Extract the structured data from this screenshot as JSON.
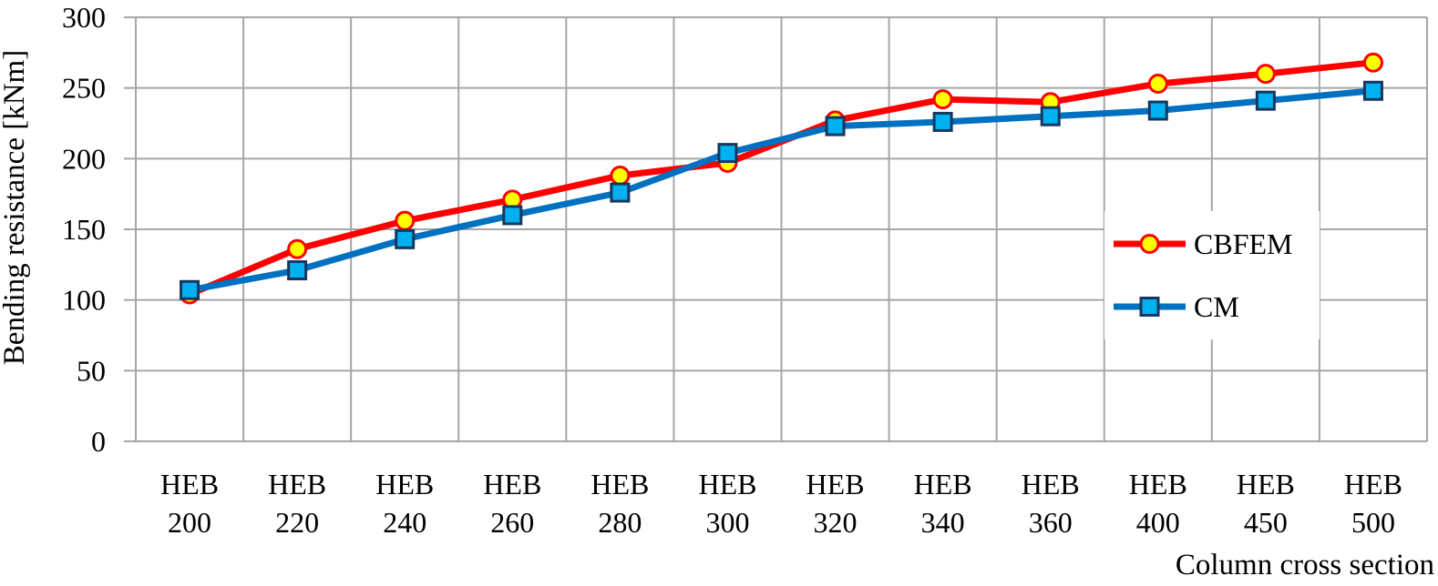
{
  "figure": {
    "background_color": "#FFFFFF",
    "gridline_color": "#A6A6A6",
    "text_color": "#000000"
  },
  "chart_data": {
    "type": "line",
    "title": "",
    "xlabel": "Column cross section",
    "ylabel": "Bending resistance [kNm]",
    "ylim": [
      0,
      300
    ],
    "ytick_step": 50,
    "ytick_labels": [
      "0",
      "50",
      "100",
      "150",
      "200",
      "250",
      "300"
    ],
    "grid": true,
    "legend_position": "middle-right",
    "categories": [
      "HEB 200",
      "HEB 220",
      "HEB 240",
      "HEB 260",
      "HEB 280",
      "HEB 300",
      "HEB 320",
      "HEB 340",
      "HEB 360",
      "HEB 400",
      "HEB 450",
      "HEB 500"
    ],
    "series": [
      {
        "name": "CBFEM",
        "values": [
          104,
          136,
          156,
          171,
          188,
          197,
          227,
          242,
          240,
          253,
          260,
          268
        ],
        "line_color": "#FF0000",
        "marker": "circle",
        "marker_fill": "#FFFF00",
        "marker_stroke": "#FF0000"
      },
      {
        "name": "CM",
        "values": [
          107,
          121,
          143,
          160,
          176,
          204,
          223,
          226,
          230,
          234,
          241,
          248
        ],
        "line_color": "#0070C0",
        "marker": "square",
        "marker_fill": "#00B0F0",
        "marker_stroke": "#17375E"
      }
    ]
  }
}
